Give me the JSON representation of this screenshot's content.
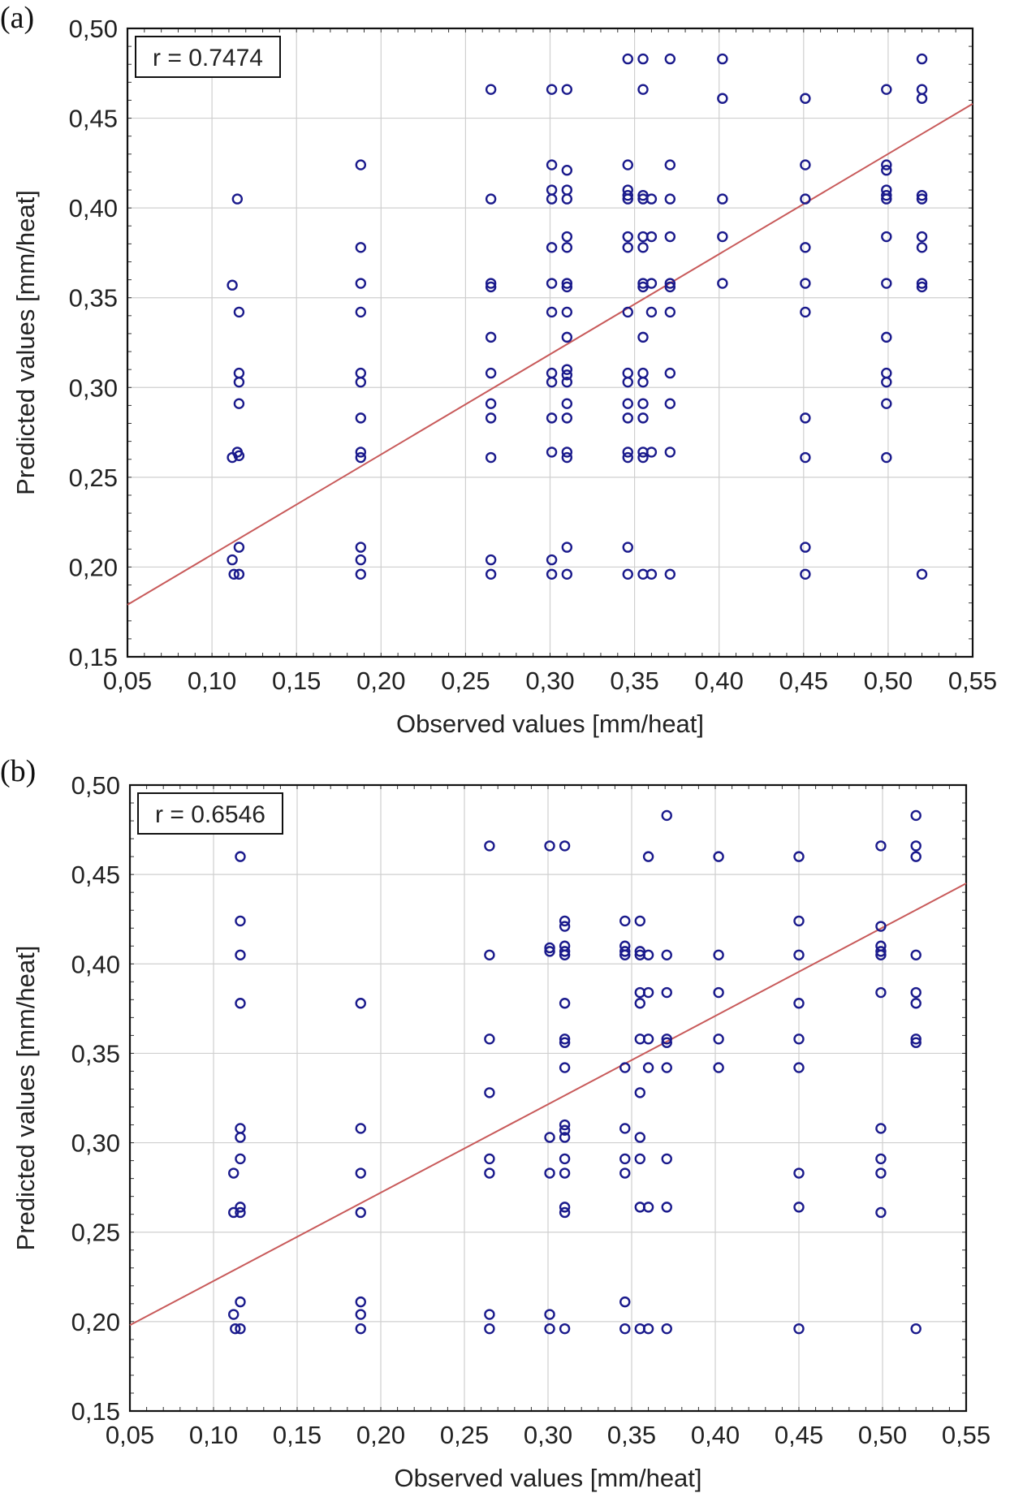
{
  "chart_data": [
    {
      "panel_label": "(a)",
      "type": "scatter",
      "title": "",
      "annotation": "r = 0.7474",
      "xlabel": "Observed values [mm/heat]",
      "ylabel": "Predicted values [mm/heat]",
      "xlim": [
        0.05,
        0.55
      ],
      "ylim": [
        0.15,
        0.5
      ],
      "xticks": [
        "0,05",
        "0,10",
        "0,15",
        "0,20",
        "0,25",
        "0,30",
        "0,35",
        "0,40",
        "0,45",
        "0,50",
        "0,55"
      ],
      "yticks": [
        "0,15",
        "0,20",
        "0,25",
        "0,30",
        "0,35",
        "0,40",
        "0,45",
        "0,50"
      ],
      "grid": true,
      "colors": {
        "points": "#1a1a8c",
        "fit_line": "#c85a5a"
      },
      "fit_line": {
        "x": [
          0.05,
          0.55
        ],
        "y": [
          0.179,
          0.458
        ]
      },
      "points": [
        [
          0.112,
          0.357
        ],
        [
          0.115,
          0.405
        ],
        [
          0.116,
          0.342
        ],
        [
          0.116,
          0.308
        ],
        [
          0.116,
          0.303
        ],
        [
          0.116,
          0.291
        ],
        [
          0.115,
          0.264
        ],
        [
          0.116,
          0.262
        ],
        [
          0.112,
          0.261
        ],
        [
          0.116,
          0.211
        ],
        [
          0.112,
          0.204
        ],
        [
          0.113,
          0.196
        ],
        [
          0.116,
          0.196
        ],
        [
          0.188,
          0.424
        ],
        [
          0.188,
          0.378
        ],
        [
          0.188,
          0.358
        ],
        [
          0.188,
          0.342
        ],
        [
          0.188,
          0.308
        ],
        [
          0.188,
          0.303
        ],
        [
          0.188,
          0.283
        ],
        [
          0.188,
          0.264
        ],
        [
          0.188,
          0.261
        ],
        [
          0.188,
          0.211
        ],
        [
          0.188,
          0.204
        ],
        [
          0.188,
          0.196
        ],
        [
          0.265,
          0.466
        ],
        [
          0.265,
          0.405
        ],
        [
          0.265,
          0.358
        ],
        [
          0.265,
          0.356
        ],
        [
          0.265,
          0.328
        ],
        [
          0.265,
          0.308
        ],
        [
          0.265,
          0.291
        ],
        [
          0.265,
          0.283
        ],
        [
          0.265,
          0.261
        ],
        [
          0.265,
          0.204
        ],
        [
          0.265,
          0.196
        ],
        [
          0.301,
          0.466
        ],
        [
          0.301,
          0.424
        ],
        [
          0.301,
          0.41
        ],
        [
          0.301,
          0.405
        ],
        [
          0.301,
          0.378
        ],
        [
          0.301,
          0.358
        ],
        [
          0.301,
          0.342
        ],
        [
          0.301,
          0.308
        ],
        [
          0.301,
          0.303
        ],
        [
          0.301,
          0.283
        ],
        [
          0.301,
          0.264
        ],
        [
          0.301,
          0.204
        ],
        [
          0.301,
          0.196
        ],
        [
          0.31,
          0.466
        ],
        [
          0.31,
          0.421
        ],
        [
          0.31,
          0.41
        ],
        [
          0.31,
          0.405
        ],
        [
          0.31,
          0.384
        ],
        [
          0.31,
          0.378
        ],
        [
          0.31,
          0.358
        ],
        [
          0.31,
          0.356
        ],
        [
          0.31,
          0.342
        ],
        [
          0.31,
          0.328
        ],
        [
          0.31,
          0.31
        ],
        [
          0.31,
          0.307
        ],
        [
          0.31,
          0.303
        ],
        [
          0.31,
          0.291
        ],
        [
          0.31,
          0.283
        ],
        [
          0.31,
          0.264
        ],
        [
          0.31,
          0.261
        ],
        [
          0.31,
          0.211
        ],
        [
          0.31,
          0.196
        ],
        [
          0.346,
          0.483
        ],
        [
          0.346,
          0.424
        ],
        [
          0.346,
          0.41
        ],
        [
          0.346,
          0.407
        ],
        [
          0.346,
          0.405
        ],
        [
          0.346,
          0.384
        ],
        [
          0.346,
          0.378
        ],
        [
          0.346,
          0.342
        ],
        [
          0.346,
          0.308
        ],
        [
          0.346,
          0.303
        ],
        [
          0.346,
          0.291
        ],
        [
          0.346,
          0.283
        ],
        [
          0.346,
          0.264
        ],
        [
          0.346,
          0.261
        ],
        [
          0.346,
          0.211
        ],
        [
          0.346,
          0.196
        ],
        [
          0.355,
          0.483
        ],
        [
          0.355,
          0.466
        ],
        [
          0.355,
          0.407
        ],
        [
          0.355,
          0.405
        ],
        [
          0.355,
          0.384
        ],
        [
          0.355,
          0.378
        ],
        [
          0.355,
          0.358
        ],
        [
          0.355,
          0.356
        ],
        [
          0.355,
          0.328
        ],
        [
          0.355,
          0.308
        ],
        [
          0.355,
          0.303
        ],
        [
          0.355,
          0.291
        ],
        [
          0.355,
          0.283
        ],
        [
          0.355,
          0.264
        ],
        [
          0.355,
          0.261
        ],
        [
          0.355,
          0.196
        ],
        [
          0.36,
          0.405
        ],
        [
          0.36,
          0.384
        ],
        [
          0.36,
          0.358
        ],
        [
          0.36,
          0.342
        ],
        [
          0.36,
          0.264
        ],
        [
          0.36,
          0.196
        ],
        [
          0.371,
          0.483
        ],
        [
          0.371,
          0.424
        ],
        [
          0.371,
          0.405
        ],
        [
          0.371,
          0.384
        ],
        [
          0.371,
          0.358
        ],
        [
          0.371,
          0.356
        ],
        [
          0.371,
          0.342
        ],
        [
          0.371,
          0.308
        ],
        [
          0.371,
          0.291
        ],
        [
          0.371,
          0.264
        ],
        [
          0.371,
          0.196
        ],
        [
          0.402,
          0.483
        ],
        [
          0.402,
          0.461
        ],
        [
          0.402,
          0.405
        ],
        [
          0.402,
          0.384
        ],
        [
          0.402,
          0.358
        ],
        [
          0.451,
          0.461
        ],
        [
          0.451,
          0.424
        ],
        [
          0.451,
          0.405
        ],
        [
          0.451,
          0.378
        ],
        [
          0.451,
          0.358
        ],
        [
          0.451,
          0.342
        ],
        [
          0.451,
          0.283
        ],
        [
          0.451,
          0.261
        ],
        [
          0.451,
          0.211
        ],
        [
          0.451,
          0.196
        ],
        [
          0.499,
          0.466
        ],
        [
          0.499,
          0.424
        ],
        [
          0.499,
          0.421
        ],
        [
          0.499,
          0.41
        ],
        [
          0.499,
          0.407
        ],
        [
          0.499,
          0.405
        ],
        [
          0.499,
          0.384
        ],
        [
          0.499,
          0.358
        ],
        [
          0.499,
          0.328
        ],
        [
          0.499,
          0.308
        ],
        [
          0.499,
          0.303
        ],
        [
          0.499,
          0.291
        ],
        [
          0.499,
          0.261
        ],
        [
          0.52,
          0.483
        ],
        [
          0.52,
          0.466
        ],
        [
          0.52,
          0.461
        ],
        [
          0.52,
          0.407
        ],
        [
          0.52,
          0.405
        ],
        [
          0.52,
          0.384
        ],
        [
          0.52,
          0.378
        ],
        [
          0.52,
          0.358
        ],
        [
          0.52,
          0.356
        ],
        [
          0.52,
          0.196
        ]
      ]
    },
    {
      "panel_label": "(b)",
      "type": "scatter",
      "title": "",
      "annotation": "r = 0.6546",
      "xlabel": "Observed values [mm/heat]",
      "ylabel": "Predicted values [mm/heat]",
      "xlim": [
        0.05,
        0.55
      ],
      "ylim": [
        0.15,
        0.5
      ],
      "xticks": [
        "0,05",
        "0,10",
        "0,15",
        "0,20",
        "0,25",
        "0,30",
        "0,35",
        "0,40",
        "0,45",
        "0,50",
        "0,55"
      ],
      "yticks": [
        "0,15",
        "0,20",
        "0,25",
        "0,30",
        "0,35",
        "0,40",
        "0,45",
        "0,50"
      ],
      "grid": true,
      "colors": {
        "points": "#1a1a8c",
        "fit_line": "#c85a5a"
      },
      "fit_line": {
        "x": [
          0.05,
          0.55
        ],
        "y": [
          0.198,
          0.445
        ]
      },
      "points": [
        [
          0.116,
          0.46
        ],
        [
          0.116,
          0.424
        ],
        [
          0.116,
          0.405
        ],
        [
          0.116,
          0.378
        ],
        [
          0.116,
          0.308
        ],
        [
          0.116,
          0.303
        ],
        [
          0.116,
          0.291
        ],
        [
          0.112,
          0.283
        ],
        [
          0.116,
          0.264
        ],
        [
          0.112,
          0.261
        ],
        [
          0.116,
          0.261
        ],
        [
          0.116,
          0.211
        ],
        [
          0.112,
          0.204
        ],
        [
          0.113,
          0.196
        ],
        [
          0.116,
          0.196
        ],
        [
          0.188,
          0.378
        ],
        [
          0.188,
          0.308
        ],
        [
          0.188,
          0.283
        ],
        [
          0.188,
          0.261
        ],
        [
          0.188,
          0.211
        ],
        [
          0.188,
          0.204
        ],
        [
          0.188,
          0.196
        ],
        [
          0.265,
          0.466
        ],
        [
          0.265,
          0.405
        ],
        [
          0.265,
          0.358
        ],
        [
          0.265,
          0.328
        ],
        [
          0.265,
          0.291
        ],
        [
          0.265,
          0.283
        ],
        [
          0.265,
          0.204
        ],
        [
          0.265,
          0.196
        ],
        [
          0.301,
          0.466
        ],
        [
          0.301,
          0.409
        ],
        [
          0.301,
          0.407
        ],
        [
          0.301,
          0.303
        ],
        [
          0.301,
          0.283
        ],
        [
          0.301,
          0.204
        ],
        [
          0.301,
          0.196
        ],
        [
          0.31,
          0.466
        ],
        [
          0.31,
          0.424
        ],
        [
          0.31,
          0.421
        ],
        [
          0.31,
          0.41
        ],
        [
          0.31,
          0.407
        ],
        [
          0.31,
          0.405
        ],
        [
          0.31,
          0.378
        ],
        [
          0.31,
          0.358
        ],
        [
          0.31,
          0.356
        ],
        [
          0.31,
          0.342
        ],
        [
          0.31,
          0.31
        ],
        [
          0.31,
          0.307
        ],
        [
          0.31,
          0.303
        ],
        [
          0.31,
          0.291
        ],
        [
          0.31,
          0.283
        ],
        [
          0.31,
          0.264
        ],
        [
          0.31,
          0.261
        ],
        [
          0.31,
          0.196
        ],
        [
          0.346,
          0.424
        ],
        [
          0.346,
          0.41
        ],
        [
          0.346,
          0.407
        ],
        [
          0.346,
          0.405
        ],
        [
          0.346,
          0.342
        ],
        [
          0.346,
          0.308
        ],
        [
          0.346,
          0.291
        ],
        [
          0.346,
          0.283
        ],
        [
          0.346,
          0.211
        ],
        [
          0.346,
          0.196
        ],
        [
          0.355,
          0.424
        ],
        [
          0.355,
          0.407
        ],
        [
          0.355,
          0.405
        ],
        [
          0.355,
          0.384
        ],
        [
          0.355,
          0.378
        ],
        [
          0.355,
          0.358
        ],
        [
          0.355,
          0.328
        ],
        [
          0.355,
          0.303
        ],
        [
          0.355,
          0.291
        ],
        [
          0.355,
          0.264
        ],
        [
          0.355,
          0.196
        ],
        [
          0.36,
          0.46
        ],
        [
          0.36,
          0.405
        ],
        [
          0.36,
          0.384
        ],
        [
          0.36,
          0.358
        ],
        [
          0.36,
          0.342
        ],
        [
          0.36,
          0.264
        ],
        [
          0.36,
          0.196
        ],
        [
          0.371,
          0.483
        ],
        [
          0.371,
          0.405
        ],
        [
          0.371,
          0.384
        ],
        [
          0.371,
          0.358
        ],
        [
          0.371,
          0.356
        ],
        [
          0.371,
          0.342
        ],
        [
          0.371,
          0.291
        ],
        [
          0.371,
          0.264
        ],
        [
          0.371,
          0.196
        ],
        [
          0.402,
          0.46
        ],
        [
          0.402,
          0.405
        ],
        [
          0.402,
          0.384
        ],
        [
          0.402,
          0.358
        ],
        [
          0.402,
          0.342
        ],
        [
          0.45,
          0.46
        ],
        [
          0.45,
          0.424
        ],
        [
          0.45,
          0.405
        ],
        [
          0.45,
          0.378
        ],
        [
          0.45,
          0.358
        ],
        [
          0.45,
          0.342
        ],
        [
          0.45,
          0.283
        ],
        [
          0.45,
          0.264
        ],
        [
          0.45,
          0.196
        ],
        [
          0.499,
          0.466
        ],
        [
          0.499,
          0.421
        ],
        [
          0.499,
          0.41
        ],
        [
          0.499,
          0.407
        ],
        [
          0.499,
          0.405
        ],
        [
          0.499,
          0.384
        ],
        [
          0.499,
          0.308
        ],
        [
          0.499,
          0.291
        ],
        [
          0.499,
          0.283
        ],
        [
          0.499,
          0.261
        ],
        [
          0.52,
          0.483
        ],
        [
          0.52,
          0.466
        ],
        [
          0.52,
          0.46
        ],
        [
          0.52,
          0.405
        ],
        [
          0.52,
          0.384
        ],
        [
          0.52,
          0.378
        ],
        [
          0.52,
          0.358
        ],
        [
          0.52,
          0.356
        ],
        [
          0.52,
          0.196
        ]
      ]
    }
  ]
}
